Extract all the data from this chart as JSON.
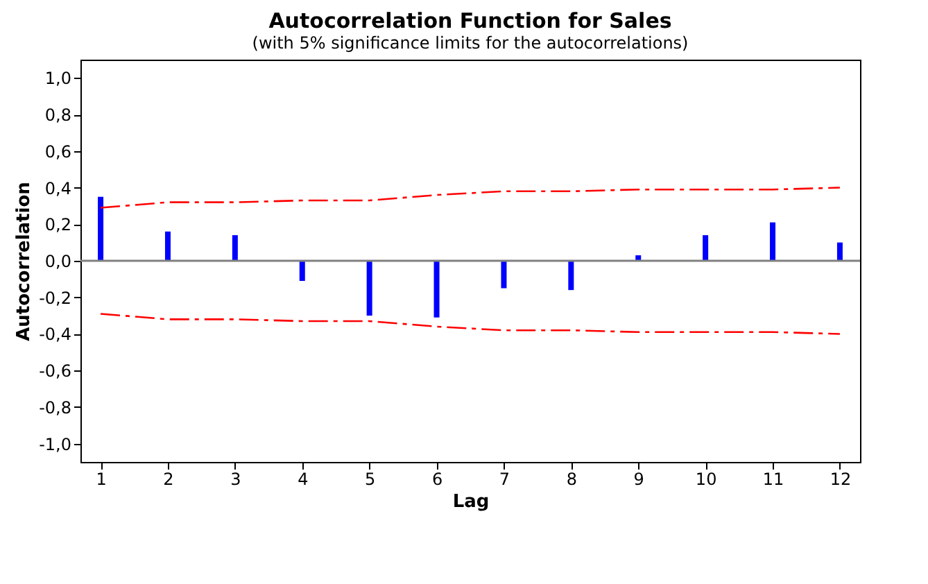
{
  "chart_data": {
    "type": "bar",
    "title": "Autocorrelation Function for Sales",
    "subtitle": "(with 5% significance limits for the autocorrelations)",
    "xlabel": "Lag",
    "ylabel": "Autocorrelation",
    "x": [
      1,
      2,
      3,
      4,
      5,
      6,
      7,
      8,
      9,
      10,
      11,
      12
    ],
    "series": [
      {
        "color": "#0000ff",
        "values": [
          0.35,
          0.16,
          0.14,
          -0.11,
          -0.3,
          -0.31,
          -0.15,
          -0.16,
          0.03,
          0.14,
          0.21,
          0.1
        ]
      },
      {
        "type": "line",
        "color": "#ff0000",
        "line_style": "dashed",
        "values": [
          0.29,
          0.32,
          0.32,
          0.33,
          0.33,
          0.36,
          0.38,
          0.38,
          0.39,
          0.39,
          0.39,
          0.4
        ]
      },
      {
        "type": "line",
        "color": "#ff0000",
        "line_style": "dashed",
        "values": [
          -0.29,
          -0.32,
          -0.32,
          -0.33,
          -0.33,
          -0.36,
          -0.38,
          -0.38,
          -0.39,
          -0.39,
          -0.39,
          -0.4
        ]
      }
    ],
    "xlim": [
      0.7,
      12.3
    ],
    "xticks": [
      1,
      2,
      3,
      4,
      5,
      6,
      7,
      8,
      9,
      10,
      11,
      12
    ],
    "ylim": [
      -1.1,
      1.1
    ],
    "yticks": [
      {
        "value": -1,
        "label": "-1,0"
      },
      {
        "value": -0.8,
        "label": "-0,8"
      },
      {
        "value": -0.6,
        "label": "-0,6"
      },
      {
        "value": -0.4,
        "label": "-0,4"
      },
      {
        "value": -0.2,
        "label": "-0,2"
      },
      {
        "value": 0,
        "label": "0,0"
      },
      {
        "value": 0.2,
        "label": "0,2"
      },
      {
        "value": 0.4,
        "label": "0,4"
      },
      {
        "value": 0.6,
        "label": "0,6"
      },
      {
        "value": 0.8,
        "label": "0,8"
      },
      {
        "value": 1,
        "label": "1,0"
      }
    ],
    "ref_lines": [
      {
        "axis": "y",
        "value": 0,
        "color": "#808080"
      }
    ],
    "grid": false
  }
}
